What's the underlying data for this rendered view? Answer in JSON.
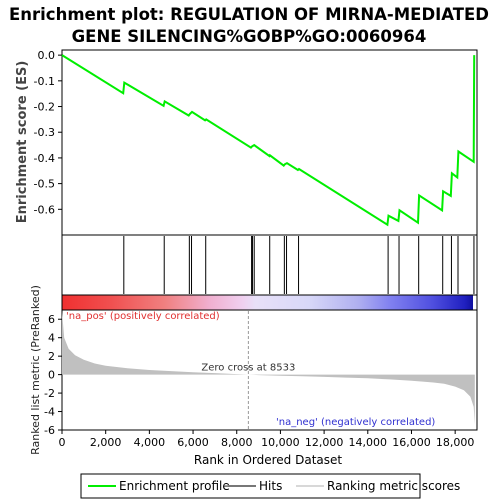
{
  "title_line1": "Enrichment plot: REGULATION OF MIRNA-MEDIATED",
  "title_line2": "GENE SILENCING%GOBP%GO:0060964",
  "colors": {
    "profile": "#00ee00",
    "hits": "#000000",
    "metric": "#c0c0c0",
    "pos_label": "#e03030",
    "neg_label": "#3030d0"
  },
  "chart_data": {
    "type": "line",
    "x_axis": {
      "label": "Rank in Ordered Dataset",
      "lim": [
        0,
        19000
      ],
      "ticks": [
        0,
        2000,
        4000,
        6000,
        8000,
        10000,
        12000,
        14000,
        16000,
        18000
      ],
      "tick_labels": [
        "0",
        "2,000",
        "4,000",
        "6,000",
        "8,000",
        "10,000",
        "12,000",
        "14,000",
        "16,000",
        "18,000"
      ]
    },
    "es_panel": {
      "ylabel": "Enrichment score (ES)",
      "ylim": [
        -0.7,
        0.02
      ],
      "ticks": [
        0.0,
        -0.1,
        -0.2,
        -0.3,
        -0.4,
        -0.5,
        -0.6
      ],
      "tick_labels": [
        "0.0",
        "-0.1",
        "-0.2",
        "-0.3",
        "-0.4",
        "-0.5",
        "-0.6"
      ],
      "series_name": "Enrichment profile",
      "profile": [
        [
          0,
          0.0
        ],
        [
          2800,
          -0.148
        ],
        [
          2850,
          -0.107
        ],
        [
          4650,
          -0.197
        ],
        [
          4700,
          -0.18
        ],
        [
          5800,
          -0.235
        ],
        [
          5850,
          -0.229
        ],
        [
          5950,
          -0.221
        ],
        [
          6550,
          -0.254
        ],
        [
          6600,
          -0.25
        ],
        [
          8650,
          -0.36
        ],
        [
          8700,
          -0.355
        ],
        [
          8800,
          -0.35
        ],
        [
          9500,
          -0.393
        ],
        [
          9520,
          -0.39
        ],
        [
          10150,
          -0.43
        ],
        [
          10200,
          -0.425
        ],
        [
          10300,
          -0.42
        ],
        [
          10800,
          -0.447
        ],
        [
          10850,
          -0.443
        ],
        [
          14900,
          -0.66
        ],
        [
          14950,
          -0.625
        ],
        [
          15400,
          -0.645
        ],
        [
          15450,
          -0.604
        ],
        [
          16300,
          -0.652
        ],
        [
          16350,
          -0.546
        ],
        [
          17400,
          -0.604
        ],
        [
          17450,
          -0.53
        ],
        [
          17800,
          -0.548
        ],
        [
          17850,
          -0.46
        ],
        [
          18100,
          -0.476
        ],
        [
          18150,
          -0.375
        ],
        [
          18850,
          -0.415
        ],
        [
          18870,
          0.0
        ]
      ]
    },
    "hits": {
      "name": "Hits",
      "ranks": [
        2830,
        4680,
        5830,
        5930,
        6580,
        8680,
        8720,
        8800,
        9510,
        10180,
        10280,
        10830,
        14930,
        15430,
        16330,
        17430,
        17830,
        18130,
        18860
      ]
    },
    "metric_panel": {
      "ylabel": "Ranked list metric (PreRanked)",
      "series_name": "Ranking metric scores",
      "ylim": [
        -6,
        7
      ],
      "ticks": [
        6,
        4,
        2,
        0,
        -2,
        -4,
        -6
      ],
      "tick_labels": [
        "6",
        "4",
        "2",
        "0",
        "-2",
        "-4",
        "-6"
      ],
      "curve": [
        [
          0,
          6.8
        ],
        [
          100,
          4.0
        ],
        [
          300,
          2.8
        ],
        [
          600,
          2.1
        ],
        [
          1000,
          1.6
        ],
        [
          1500,
          1.2
        ],
        [
          2000,
          0.95
        ],
        [
          3000,
          0.7
        ],
        [
          4000,
          0.5
        ],
        [
          5000,
          0.38
        ],
        [
          6000,
          0.26
        ],
        [
          7000,
          0.16
        ],
        [
          8000,
          0.06
        ],
        [
          8533,
          0.0
        ],
        [
          9000,
          -0.05
        ],
        [
          10000,
          -0.12
        ],
        [
          11000,
          -0.18
        ],
        [
          12000,
          -0.25
        ],
        [
          13000,
          -0.32
        ],
        [
          14000,
          -0.4
        ],
        [
          15000,
          -0.52
        ],
        [
          16000,
          -0.66
        ],
        [
          17000,
          -0.85
        ],
        [
          17500,
          -1.0
        ],
        [
          18000,
          -1.3
        ],
        [
          18400,
          -1.7
        ],
        [
          18700,
          -2.4
        ],
        [
          18850,
          -3.5
        ],
        [
          18900,
          -5.4
        ]
      ],
      "zero_cross_text": "Zero cross at 8533",
      "zero_cross_rank": 8533,
      "pos_label": "'na_pos' (positively correlated)",
      "neg_label": "'na_neg' (negatively correlated)"
    },
    "legend": {
      "items": [
        "Enrichment profile",
        "Hits",
        "Ranking metric scores"
      ],
      "placement": "bottom"
    },
    "grid": false
  }
}
